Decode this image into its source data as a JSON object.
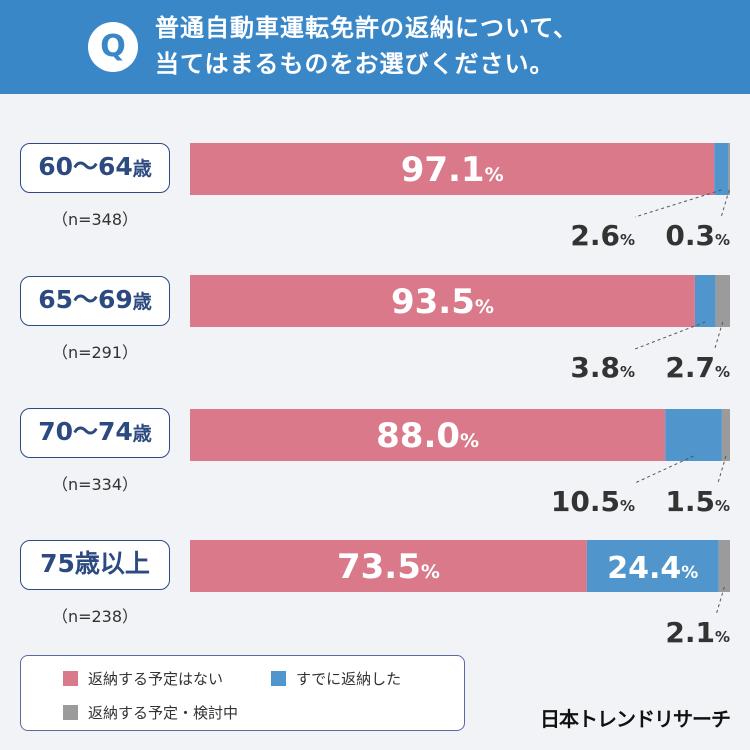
{
  "question": {
    "mark": "Q",
    "text": "普通自動車運転免許の返納について、\n当てはまるものをお選びください。"
  },
  "colors": {
    "no_plan": "#d9798a",
    "returned": "#5096cc",
    "considering": "#9b9b9b",
    "header": "#3a87c8"
  },
  "groups": [
    {
      "label": "60～64",
      "suffix": "歳",
      "n": "（n=348）"
    },
    {
      "label": "65～69",
      "suffix": "歳",
      "n": "（n=291）"
    },
    {
      "label": "70～74",
      "suffix": "歳",
      "n": "（n=334）"
    },
    {
      "label": "75歳以上",
      "suffix": "",
      "n": "（n=238）"
    }
  ],
  "legend": {
    "no_plan": "返納する予定はない",
    "returned": "すでに返納した",
    "considering": "返納する予定・検討中"
  },
  "logo": "日本トレンドリサーチ",
  "chart_data": {
    "type": "bar",
    "stacked": true,
    "orientation": "horizontal",
    "title": "普通自動車運転免許の返納について、当てはまるものをお選びください。",
    "unit": "%",
    "categories": [
      "60～64歳",
      "65～69歳",
      "70～74歳",
      "75歳以上"
    ],
    "series": [
      {
        "name": "返納する予定はない",
        "values": [
          97.1,
          93.5,
          88.0,
          73.5
        ]
      },
      {
        "name": "すでに返納した",
        "values": [
          2.6,
          3.8,
          10.5,
          24.4
        ]
      },
      {
        "name": "返納する予定・検討中",
        "values": [
          0.3,
          2.7,
          1.5,
          2.1
        ]
      }
    ],
    "xlim": [
      0,
      100
    ],
    "legend_position": "bottom-left"
  }
}
